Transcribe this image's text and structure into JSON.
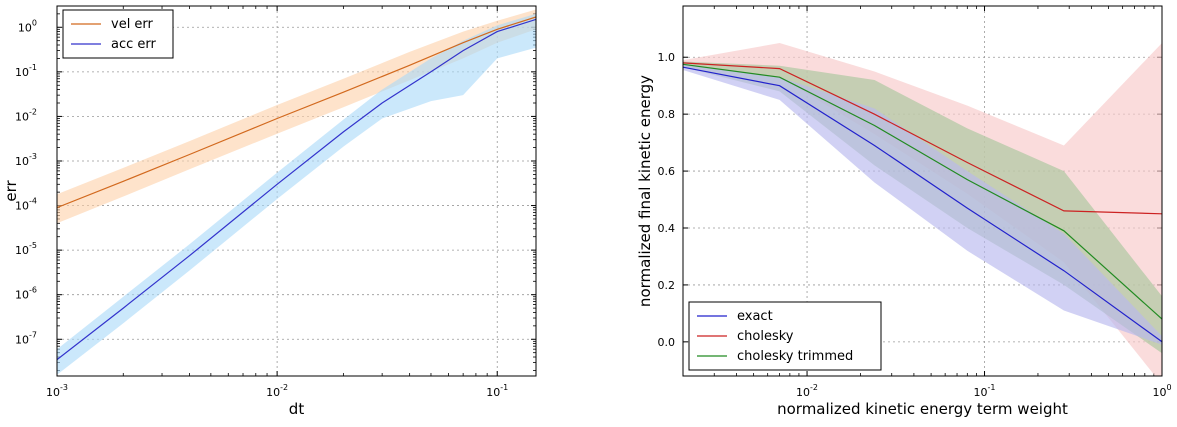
{
  "chart_data": [
    {
      "type": "line",
      "title": "",
      "xlabel": "dt",
      "ylabel": "err",
      "xscale": "log",
      "yscale": "log",
      "xlim": [
        0.001,
        0.15
      ],
      "ylim": [
        1.5e-08,
        3.0
      ],
      "grid": true,
      "legend": "top-left",
      "x_tick_labels": [
        {
          "value": 0.001,
          "base": "10",
          "exp": "-3"
        },
        {
          "value": 0.01,
          "base": "10",
          "exp": "-2"
        },
        {
          "value": 0.1,
          "base": "10",
          "exp": "-1"
        }
      ],
      "y_tick_labels": [
        {
          "value": 1e-07,
          "base": "10",
          "exp": "-7"
        },
        {
          "value": 1e-06,
          "base": "10",
          "exp": "-6"
        },
        {
          "value": 1e-05,
          "base": "10",
          "exp": "-5"
        },
        {
          "value": 0.0001,
          "base": "10",
          "exp": "-4"
        },
        {
          "value": 0.001,
          "base": "10",
          "exp": "-3"
        },
        {
          "value": 0.01,
          "base": "10",
          "exp": "-2"
        },
        {
          "value": 0.1,
          "base": "10",
          "exp": "-1"
        },
        {
          "value": 1,
          "base": "10",
          "exp": "0"
        }
      ],
      "series": [
        {
          "name": "vel err",
          "color": "#d2691e",
          "fill": "#fdd0a8",
          "x": [
            0.001,
            0.002,
            0.004,
            0.01,
            0.02,
            0.04,
            0.07,
            0.1,
            0.15
          ],
          "y": [
            9e-05,
            0.00035,
            0.0014,
            0.009,
            0.035,
            0.14,
            0.45,
            0.9,
            1.7
          ],
          "lower": [
            4e-05,
            0.00016,
            0.00065,
            0.0041,
            0.016,
            0.065,
            0.2,
            0.45,
            0.9
          ],
          "upper": [
            0.00018,
            0.0007,
            0.0028,
            0.018,
            0.07,
            0.28,
            0.8,
            1.4,
            2.5
          ]
        },
        {
          "name": "acc err",
          "color": "#3333cc",
          "fill": "#a8d8f8",
          "x": [
            0.001,
            0.002,
            0.004,
            0.01,
            0.02,
            0.03,
            0.05,
            0.07,
            0.1,
            0.15
          ],
          "y": [
            3.5e-08,
            5e-07,
            7.5e-06,
            0.0003,
            0.0045,
            0.02,
            0.1,
            0.3,
            0.8,
            1.5
          ],
          "lower": [
            1.6e-08,
            2.3e-07,
            3.5e-06,
            0.00014,
            0.0021,
            0.009,
            0.022,
            0.03,
            0.2,
            0.35
          ],
          "upper": [
            6e-08,
            9e-07,
            1.35e-05,
            0.00055,
            0.0085,
            0.04,
            0.2,
            0.5,
            1.1,
            2.0
          ]
        }
      ]
    },
    {
      "type": "line",
      "title": "",
      "xlabel": "normalized kinetic energy term weight",
      "ylabel": "normalized final kinetic energy",
      "xscale": "log",
      "yscale": "linear",
      "xlim": [
        0.002,
        1
      ],
      "ylim": [
        -0.12,
        1.18
      ],
      "grid": true,
      "legend": "bottom-left",
      "x_tick_labels": [
        {
          "value": 0.01,
          "base": "10",
          "exp": "-2"
        },
        {
          "value": 0.1,
          "base": "10",
          "exp": "-1"
        },
        {
          "value": 1,
          "base": "10",
          "exp": "0"
        }
      ],
      "y_tick_labels": [
        "0.0",
        "0.2",
        "0.4",
        "0.6",
        "0.8",
        "1.0"
      ],
      "y_tick_values": [
        0.0,
        0.2,
        0.4,
        0.6,
        0.8,
        1.0
      ],
      "series": [
        {
          "name": "cholesky",
          "color": "#cc2222",
          "fill": "#f7c9c9",
          "x": [
            0.002,
            0.007,
            0.024,
            0.08,
            0.28,
            1.0
          ],
          "y": [
            0.98,
            0.96,
            0.8,
            0.63,
            0.46,
            0.45
          ],
          "lower": [
            0.97,
            0.93,
            0.73,
            0.52,
            0.28,
            -0.15
          ],
          "upper": [
            0.99,
            1.05,
            0.95,
            0.83,
            0.69,
            1.05
          ]
        },
        {
          "name": "cholesky trimmed",
          "color": "#228b22",
          "fill": "#a9c69d",
          "x": [
            0.002,
            0.007,
            0.024,
            0.08,
            0.28,
            1.0
          ],
          "y": [
            0.975,
            0.93,
            0.76,
            0.57,
            0.39,
            0.08
          ],
          "lower": [
            0.965,
            0.88,
            0.62,
            0.4,
            0.2,
            -0.04
          ],
          "upper": [
            0.985,
            0.97,
            0.92,
            0.75,
            0.6,
            0.16
          ]
        },
        {
          "name": "exact",
          "color": "#2222cc",
          "fill": "#b8b8ee",
          "x": [
            0.002,
            0.007,
            0.024,
            0.08,
            0.28,
            1.0
          ],
          "y": [
            0.965,
            0.9,
            0.69,
            0.47,
            0.25,
            0.0
          ],
          "lower": [
            0.955,
            0.85,
            0.56,
            0.32,
            0.11,
            -0.01
          ],
          "upper": [
            0.975,
            0.93,
            0.82,
            0.6,
            0.38,
            0.02
          ]
        }
      ],
      "legend_order": [
        "exact",
        "cholesky",
        "cholesky trimmed"
      ]
    }
  ]
}
